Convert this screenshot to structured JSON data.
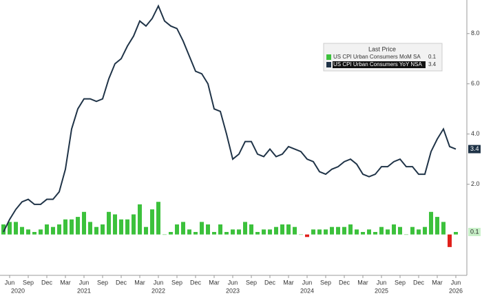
{
  "chart_data": {
    "type": "bar_line",
    "categories": [
      null,
      "Jun",
      null,
      null,
      "Sep",
      null,
      null,
      "Dec",
      null,
      null,
      "Mar",
      null,
      null,
      "Jun",
      null,
      null,
      "Sep",
      null,
      null,
      "Dec",
      null,
      null,
      "Mar",
      null,
      null,
      "Jun",
      null,
      null,
      "Sep",
      null,
      null,
      "Dec",
      null,
      null,
      "Mar",
      null,
      null,
      "Jun",
      null,
      null,
      "Sep",
      null,
      null,
      "Dec",
      null,
      null,
      "Mar",
      null,
      null,
      "Jun",
      null,
      null,
      "Sep",
      null,
      null,
      "Dec",
      null,
      null,
      "Mar",
      null,
      null,
      "Jun",
      null,
      null,
      "Sep",
      null,
      null,
      "Dec",
      null,
      null,
      "Mar",
      null,
      null,
      "Jun"
    ],
    "years": [
      "2020",
      "2021",
      "2022",
      "2023",
      "2024",
      "2025",
      "2026"
    ],
    "legend_title": "Last Price",
    "series": [
      {
        "name": "US CPI Urban Consumers MoM SA",
        "type": "bar",
        "color": "#3cc13c",
        "negative_color": "#e0201b",
        "values": [
          0.4,
          0.5,
          0.5,
          0.3,
          0.2,
          0.1,
          0.2,
          0.4,
          0.3,
          0.4,
          0.6,
          0.6,
          0.7,
          0.9,
          0.5,
          0.3,
          0.4,
          0.9,
          0.8,
          0.6,
          0.6,
          0.8,
          1.2,
          0.3,
          1.0,
          1.3,
          0.0,
          0.1,
          0.4,
          0.5,
          0.2,
          0.1,
          0.5,
          0.4,
          0.1,
          0.4,
          0.1,
          0.2,
          0.2,
          0.5,
          0.4,
          0.1,
          0.2,
          0.2,
          0.3,
          0.4,
          0.4,
          0.3,
          0.0,
          -0.1,
          0.2,
          0.2,
          0.2,
          0.3,
          0.3,
          0.3,
          0.4,
          0.2,
          0.1,
          0.2,
          0.1,
          0.3,
          0.2,
          0.4,
          0.3,
          0.0,
          0.3,
          0.2,
          0.3,
          0.9,
          0.7,
          0.5,
          -0.5,
          0.1
        ]
      },
      {
        "name": "US CPI Urban Consumers YoY NSA",
        "type": "line",
        "color": "#1f3347",
        "values": [
          0.1,
          0.6,
          1.0,
          1.3,
          1.4,
          1.2,
          1.2,
          1.4,
          1.4,
          1.7,
          2.6,
          4.2,
          5.0,
          5.4,
          5.4,
          5.3,
          5.4,
          6.2,
          6.8,
          7.0,
          7.5,
          7.9,
          8.5,
          8.3,
          8.6,
          9.1,
          8.5,
          8.3,
          8.2,
          7.7,
          7.1,
          6.5,
          6.4,
          6.0,
          5.0,
          4.9,
          4.0,
          3.0,
          3.2,
          3.7,
          3.7,
          3.2,
          3.1,
          3.4,
          3.1,
          3.2,
          3.5,
          3.4,
          3.3,
          3.0,
          2.9,
          2.5,
          2.4,
          2.6,
          2.7,
          2.9,
          3.0,
          2.8,
          2.4,
          2.3,
          2.4,
          2.7,
          2.7,
          2.9,
          3.0,
          2.7,
          2.7,
          2.4,
          2.4,
          3.3,
          3.8,
          4.2,
          3.5,
          3.4
        ]
      }
    ],
    "ylim": [
      -1.6,
      9.2
    ],
    "yticks": [
      {
        "value": 2,
        "label": "2.0"
      },
      {
        "value": 4,
        "label": "4.0"
      },
      {
        "value": 6,
        "label": "6.0"
      },
      {
        "value": 8,
        "label": "8.0"
      }
    ],
    "grid": false
  }
}
